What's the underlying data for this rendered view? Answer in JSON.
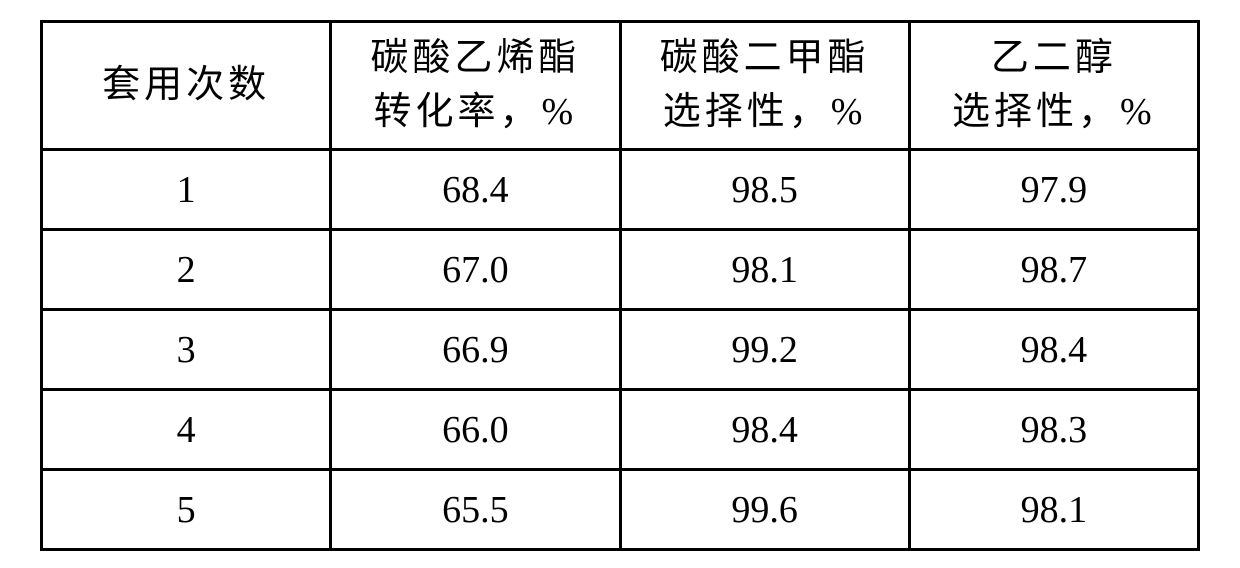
{
  "table": {
    "background_color": "#ffffff",
    "border_color": "#000000",
    "border_width": 3,
    "font_family": "SimSun, serif",
    "font_size_pt": 28,
    "text_color": "#000000",
    "column_widths_pct": [
      25,
      25,
      25,
      25
    ],
    "columns": [
      {
        "line1": "套用次数",
        "line2": ""
      },
      {
        "line1": "碳酸乙烯酯",
        "line2": "转化率，%"
      },
      {
        "line1": "碳酸二甲酯",
        "line2": "选择性，%"
      },
      {
        "line1": "乙二醇",
        "line2": "选择性，%"
      }
    ],
    "rows": [
      [
        "1",
        "68.4",
        "98.5",
        "97.9"
      ],
      [
        "2",
        "67.0",
        "98.1",
        "98.7"
      ],
      [
        "3",
        "66.9",
        "99.2",
        "98.4"
      ],
      [
        "4",
        "66.0",
        "98.4",
        "98.3"
      ],
      [
        "5",
        "65.5",
        "99.6",
        "98.1"
      ]
    ]
  }
}
